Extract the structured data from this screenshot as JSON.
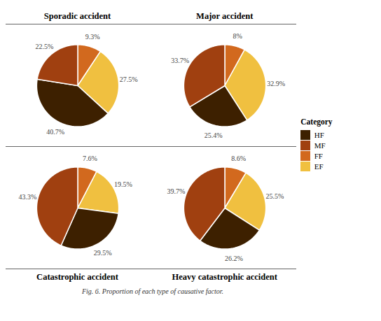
{
  "chart_data": [
    {
      "type": "pie",
      "title": "Sporadic accident",
      "categories": [
        "FF",
        "EF",
        "HF",
        "MF"
      ],
      "values": [
        9.3,
        27.5,
        40.7,
        22.5
      ],
      "value_labels": [
        "9.3%",
        "27.5%",
        "40.7%",
        "22.5%"
      ],
      "colors": [
        "#d2691e",
        "#f0c040",
        "#3d2000",
        "#a04010"
      ]
    },
    {
      "type": "pie",
      "title": "Major accident",
      "categories": [
        "FF",
        "EF",
        "HF",
        "MF"
      ],
      "values": [
        8.0,
        32.9,
        25.4,
        33.7
      ],
      "value_labels": [
        "8%",
        "32.9%",
        "25.4%",
        "33.7%"
      ],
      "colors": [
        "#d2691e",
        "#f0c040",
        "#3d2000",
        "#a04010"
      ]
    },
    {
      "type": "pie",
      "title": "Catastrophic accident",
      "categories": [
        "FF",
        "EF",
        "HF",
        "MF"
      ],
      "values": [
        7.6,
        19.5,
        29.5,
        43.3
      ],
      "value_labels": [
        "7.6%",
        "19.5%",
        "29.5%",
        "43.3%"
      ],
      "colors": [
        "#d2691e",
        "#f0c040",
        "#3d2000",
        "#a04010"
      ]
    },
    {
      "type": "pie",
      "title": "Heavy catastrophic accident",
      "categories": [
        "FF",
        "EF",
        "HF",
        "MF"
      ],
      "values": [
        8.6,
        25.5,
        26.2,
        39.7
      ],
      "value_labels": [
        "8.6%",
        "25.5%",
        "26.2%",
        "39.7%"
      ],
      "colors": [
        "#d2691e",
        "#f0c040",
        "#3d2000",
        "#a04010"
      ]
    }
  ],
  "legend": {
    "title": "Category",
    "entries": [
      {
        "name": "HF",
        "color": "#3d2000"
      },
      {
        "name": "MF",
        "color": "#a04010"
      },
      {
        "name": "FF",
        "color": "#d2691e"
      },
      {
        "name": "EF",
        "color": "#f0c040"
      }
    ]
  },
  "caption": "Fig. 6.  Proportion of each type of causative factor."
}
